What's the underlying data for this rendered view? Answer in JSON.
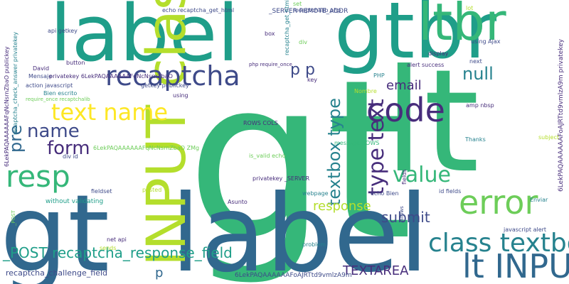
{
  "palette": {
    "dark_purple": "#472D7B",
    "purple": "#3E4A89",
    "blue": "#31688E",
    "teal": "#26828E",
    "green_teal": "#1F9E89",
    "green": "#35B779",
    "light_green": "#6DCD59",
    "lime": "#B4DE2C",
    "yellow": "#FDE725"
  },
  "words": [
    {
      "text": "gt"
    },
    {
      "text": "lt"
    },
    {
      "text": "label"
    },
    {
      "text": "label"
    },
    {
      "text": "gtbr"
    },
    {
      "text": "gt"
    },
    {
      "text": "ltbr"
    },
    {
      "text": "INPUT class"
    },
    {
      "text": "recaptcha"
    },
    {
      "text": "resp"
    },
    {
      "text": "code"
    },
    {
      "text": "error"
    },
    {
      "text": "lt INPUT"
    },
    {
      "text": "class textbox"
    },
    {
      "text": "value"
    },
    {
      "text": "text name"
    },
    {
      "text": "name"
    },
    {
      "text": "form"
    },
    {
      "text": "type text"
    },
    {
      "text": "textbox type"
    },
    {
      "text": "pre"
    },
    {
      "text": "p p"
    },
    {
      "text": "null"
    },
    {
      "text": "email"
    },
    {
      "text": "response"
    },
    {
      "text": "submit"
    },
    {
      "text": "TEXTAREA"
    },
    {
      "text": "p"
    },
    {
      "text": "_POST recaptcha_response_field"
    },
    {
      "text": "recaptcha_challenge_field"
    },
    {
      "text": "6LekPAQAAAAAAFoAJRTtd9vmlzA9m"
    },
    {
      "text": "6LekPAQAAAAAAFoAJRTtd9vmlzA9m privatekey"
    },
    {
      "text": "6LekPAQAAAAAAFqNcNsrnZbaO publickey"
    },
    {
      "text": "recaptcha_check_answer privatekey"
    },
    {
      "text": "echo recaptcha_get_html"
    },
    {
      "text": "recaptchalib php"
    },
    {
      "text": "set"
    },
    {
      "text": "lot"
    },
    {
      "text": "_SERVER REMOTE_ADDR"
    },
    {
      "text": "box"
    },
    {
      "text": "div"
    },
    {
      "text": "recaptcha_get_html publickey"
    },
    {
      "text": "php require_once"
    },
    {
      "text": "display"
    },
    {
      "text": "using Ajax"
    },
    {
      "text": "next"
    },
    {
      "text": "alert success"
    },
    {
      "text": "PHP"
    },
    {
      "text": "api getkey"
    },
    {
      "text": "button"
    },
    {
      "text": "David"
    },
    {
      "text": "Mensaje"
    },
    {
      "text": "privatekey 6LekPAQAAAAAAFqNcNsrnZbaO"
    },
    {
      "text": "action javascript"
    },
    {
      "text": "Bien escrito"
    },
    {
      "text": "require_once recaptchalib"
    },
    {
      "text": "getkey publickey"
    },
    {
      "text": "key"
    },
    {
      "text": "using"
    },
    {
      "text": "Nombre"
    },
    {
      "text": "amp nbsp"
    },
    {
      "text": "ROWS COLS"
    },
    {
      "text": "6LekPAQAAAAAAFqNcNsrnZbaO ZMg"
    },
    {
      "text": "div id"
    },
    {
      "text": "message ROWS"
    },
    {
      "text": "fields"
    },
    {
      "text": "Thanks"
    },
    {
      "text": "subject"
    },
    {
      "text": "is_valid echo"
    },
    {
      "text": "privatekey _SERVER"
    },
    {
      "text": "_POST"
    },
    {
      "text": "pasted"
    },
    {
      "text": "fieldset"
    },
    {
      "text": "without validating"
    },
    {
      "text": "Asunto"
    },
    {
      "text": "webpage"
    },
    {
      "text": "echo Bien"
    },
    {
      "text": "allows"
    },
    {
      "text": "id fields"
    },
    {
      "text": "Enviar"
    },
    {
      "text": "javascript alert"
    },
    {
      "text": "net api"
    },
    {
      "text": "sends"
    },
    {
      "text": "problem"
    }
  ]
}
